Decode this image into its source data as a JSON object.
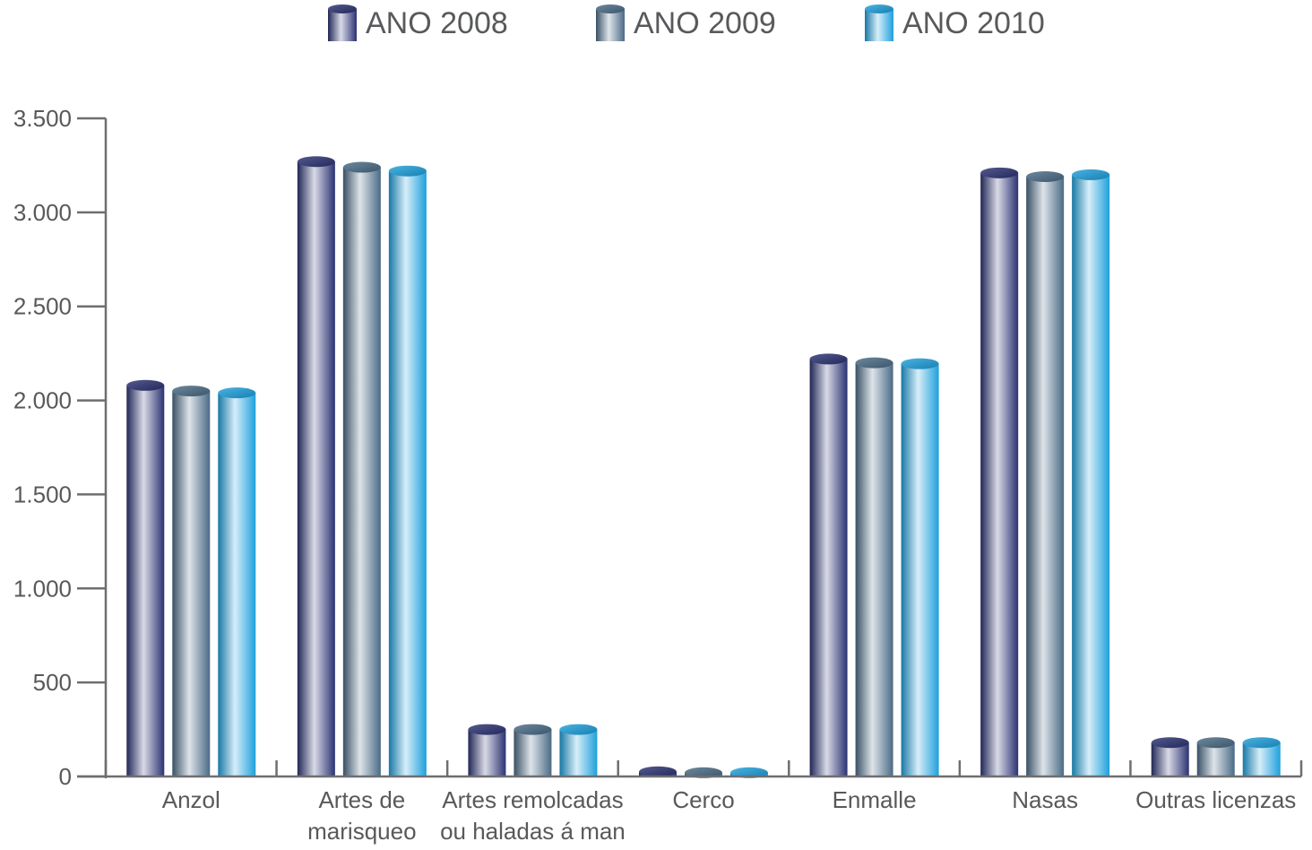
{
  "chart_data": {
    "type": "bar",
    "title": "",
    "xlabel": "",
    "ylabel": "",
    "ylim": [
      0,
      3500
    ],
    "yticks": [
      0,
      500,
      1000,
      1500,
      2000,
      2500,
      3000,
      3500
    ],
    "ytick_labels": [
      "0",
      "500",
      "1.000",
      "1.500",
      "2.000",
      "2.500",
      "3.000",
      "3.500"
    ],
    "grid": false,
    "legend_position": "top-center",
    "categories": [
      [
        "Anzol"
      ],
      [
        "Artes de",
        "marisqueo"
      ],
      [
        "Artes remolcadas",
        "ou haladas á man"
      ],
      [
        "Cerco"
      ],
      [
        "Enmalle"
      ],
      [
        "Nasas"
      ],
      [
        "Outras licenzas"
      ]
    ],
    "series": [
      {
        "name": "ANO 2008",
        "color": "#2b3272",
        "values": [
          2080,
          3270,
          250,
          25,
          2220,
          3210,
          180
        ]
      },
      {
        "name": "ANO 2009",
        "color": "#4a6a86",
        "values": [
          2050,
          3240,
          250,
          20,
          2200,
          3190,
          180
        ]
      },
      {
        "name": "ANO 2010",
        "color": "#1ea0dc",
        "values": [
          2040,
          3220,
          250,
          20,
          2195,
          3200,
          180
        ]
      }
    ]
  }
}
